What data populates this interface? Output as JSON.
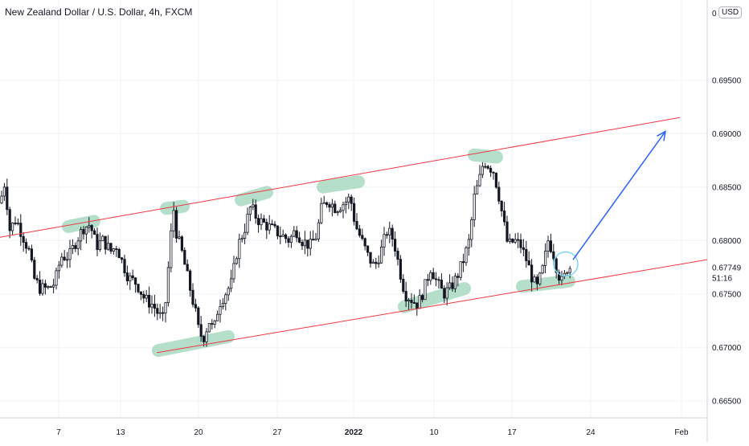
{
  "header": {
    "title": "New Zealand Dollar / U.S. Dollar, 4h, FXCM",
    "currency": "USD"
  },
  "chart_data": {
    "type": "candlestick",
    "symbol": "NZDUSD",
    "timeframe": "4h",
    "xlim": [
      0,
      880
    ],
    "ylim": [
      0.6634,
      0.7025
    ],
    "y_ticks": [
      "0.69500",
      "0.69000",
      "0.68500",
      "0.68000",
      "0.67500",
      "0.67000",
      "0.66500"
    ],
    "y_tick_values": [
      0.695,
      0.69,
      0.685,
      0.68,
      0.675,
      0.67,
      0.665
    ],
    "x_ticks": [
      {
        "label": "7",
        "x": 73
      },
      {
        "label": "13",
        "x": 150
      },
      {
        "label": "20",
        "x": 247
      },
      {
        "label": "27",
        "x": 345
      },
      {
        "label": "2022",
        "x": 440,
        "bold": true
      },
      {
        "label": "10",
        "x": 540
      },
      {
        "label": "17",
        "x": 637
      },
      {
        "label": "24",
        "x": 735
      },
      {
        "label": "Feb",
        "x": 848
      }
    ],
    "price_label": {
      "value": "0.67749",
      "countdown": "51:16",
      "y": 0.6775
    },
    "top_cut_label": {
      "value": "0",
      "y": 0.7013
    },
    "path": [
      [
        0,
        0.6835
      ],
      [
        6,
        0.6855
      ],
      [
        12,
        0.681
      ],
      [
        20,
        0.682
      ],
      [
        28,
        0.6805
      ],
      [
        36,
        0.679
      ],
      [
        42,
        0.6765
      ],
      [
        50,
        0.6755
      ],
      [
        60,
        0.6755
      ],
      [
        68,
        0.676
      ],
      [
        76,
        0.6785
      ],
      [
        86,
        0.6785
      ],
      [
        95,
        0.68
      ],
      [
        104,
        0.6812
      ],
      [
        112,
        0.6815
      ],
      [
        120,
        0.6795
      ],
      [
        128,
        0.68
      ],
      [
        138,
        0.679
      ],
      [
        145,
        0.6795
      ],
      [
        152,
        0.678
      ],
      [
        160,
        0.6765
      ],
      [
        170,
        0.676
      ],
      [
        180,
        0.6745
      ],
      [
        190,
        0.674
      ],
      [
        198,
        0.673
      ],
      [
        204,
        0.6725
      ],
      [
        208,
        0.676
      ],
      [
        212,
        0.68
      ],
      [
        216,
        0.683
      ],
      [
        220,
        0.6805
      ],
      [
        226,
        0.679
      ],
      [
        232,
        0.677
      ],
      [
        238,
        0.675
      ],
      [
        244,
        0.673
      ],
      [
        248,
        0.6712
      ],
      [
        254,
        0.671
      ],
      [
        260,
        0.6725
      ],
      [
        266,
        0.6715
      ],
      [
        272,
        0.674
      ],
      [
        280,
        0.675
      ],
      [
        288,
        0.676
      ],
      [
        296,
        0.6795
      ],
      [
        304,
        0.681
      ],
      [
        312,
        0.6832
      ],
      [
        320,
        0.682
      ],
      [
        330,
        0.6815
      ],
      [
        340,
        0.681
      ],
      [
        350,
        0.6805
      ],
      [
        360,
        0.68
      ],
      [
        368,
        0.681
      ],
      [
        376,
        0.68
      ],
      [
        386,
        0.6795
      ],
      [
        394,
        0.6805
      ],
      [
        400,
        0.683
      ],
      [
        408,
        0.6838
      ],
      [
        418,
        0.683
      ],
      [
        428,
        0.6835
      ],
      [
        436,
        0.684
      ],
      [
        442,
        0.6815
      ],
      [
        450,
        0.68
      ],
      [
        458,
        0.6785
      ],
      [
        466,
        0.6775
      ],
      [
        474,
        0.679
      ],
      [
        482,
        0.681
      ],
      [
        490,
        0.68
      ],
      [
        498,
        0.677
      ],
      [
        504,
        0.675
      ],
      [
        512,
        0.6745
      ],
      [
        520,
        0.674
      ],
      [
        528,
        0.6755
      ],
      [
        536,
        0.6775
      ],
      [
        544,
        0.676
      ],
      [
        552,
        0.675
      ],
      [
        560,
        0.6755
      ],
      [
        568,
        0.6765
      ],
      [
        576,
        0.678
      ],
      [
        584,
        0.68
      ],
      [
        590,
        0.684
      ],
      [
        596,
        0.6855
      ],
      [
        602,
        0.6875
      ],
      [
        608,
        0.687
      ],
      [
        614,
        0.6865
      ],
      [
        620,
        0.6845
      ],
      [
        626,
        0.682
      ],
      [
        632,
        0.6795
      ],
      [
        640,
        0.68
      ],
      [
        648,
        0.6795
      ],
      [
        656,
        0.678
      ],
      [
        662,
        0.6765
      ],
      [
        668,
        0.6755
      ],
      [
        676,
        0.6775
      ],
      [
        682,
        0.68
      ],
      [
        688,
        0.679
      ],
      [
        694,
        0.677
      ],
      [
        700,
        0.676
      ],
      [
        706,
        0.6775
      ],
      [
        710,
        0.6775
      ]
    ],
    "channel_upper": [
      [
        0,
        0.6803
      ],
      [
        846,
        0.6915
      ]
    ],
    "channel_lower": [
      [
        195,
        0.6695
      ],
      [
        880,
        0.6782
      ]
    ],
    "forecast_arrow": [
      [
        713,
        0.6782
      ],
      [
        828,
        0.6902
      ]
    ],
    "circle_marker": {
      "x": 704,
      "y": 0.6778
    },
    "highlights": [
      [
        [
          85,
          0.6813
        ],
        [
          117,
          0.6818
        ]
      ],
      [
        [
          207,
          0.683
        ],
        [
          228,
          0.6832
        ]
      ],
      [
        [
          300,
          0.6838
        ],
        [
          332,
          0.6845
        ]
      ],
      [
        [
          402,
          0.685
        ],
        [
          446,
          0.6855
        ]
      ],
      [
        [
          590,
          0.688
        ],
        [
          618,
          0.6878
        ]
      ],
      [
        [
          197,
          0.6697
        ],
        [
          284,
          0.671
        ]
      ],
      [
        [
          503,
          0.6738
        ],
        [
          578,
          0.6755
        ]
      ],
      [
        [
          650,
          0.6757
        ],
        [
          708,
          0.6762
        ]
      ]
    ]
  }
}
